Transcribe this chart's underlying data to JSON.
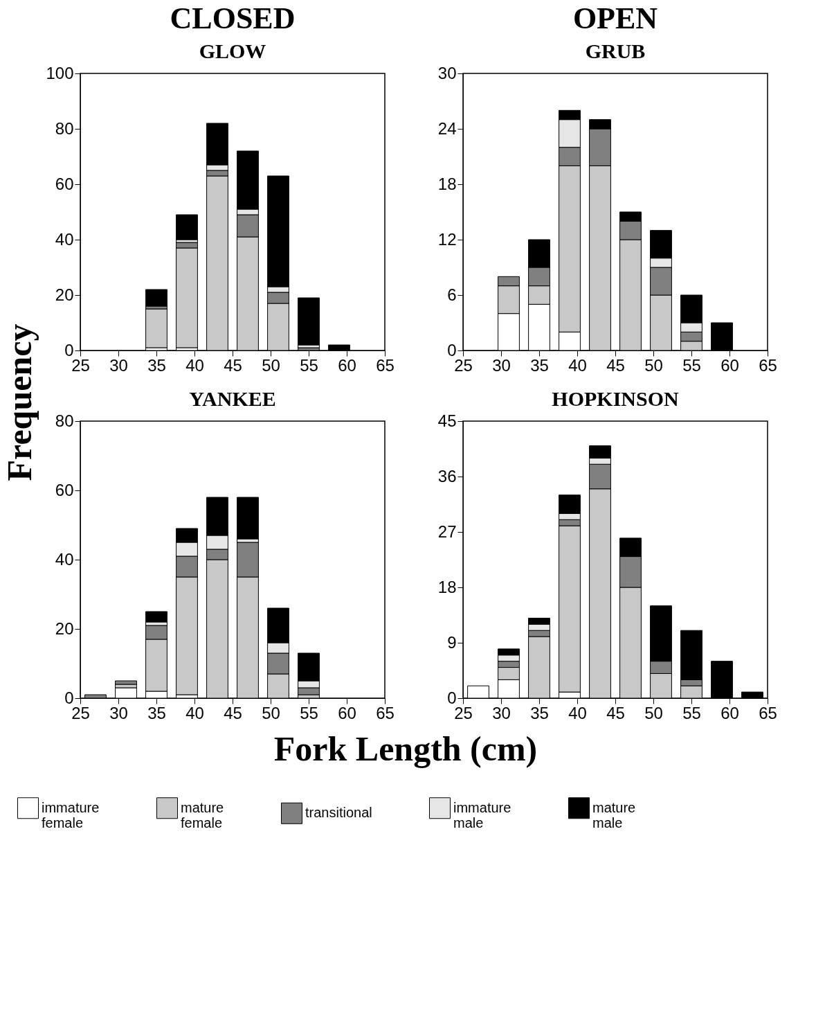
{
  "chart_data": [
    {
      "type": "bar",
      "stacked": true,
      "title": "CLOSED",
      "subtitle": "GLOW",
      "ylabel": "Frequency",
      "legend": "bottom",
      "x": [
        35,
        39,
        43,
        47,
        51,
        55,
        59
      ],
      "xlim": [
        25,
        65
      ],
      "xticks": [
        25,
        30,
        35,
        40,
        45,
        50,
        55,
        60,
        65
      ],
      "ylim": [
        0,
        100
      ],
      "yticks": [
        0,
        20,
        40,
        60,
        80,
        100
      ],
      "series": [
        {
          "name": "immature female",
          "color": "#ffffff",
          "values": [
            1,
            1,
            null,
            null,
            null,
            null,
            null
          ]
        },
        {
          "name": "mature female",
          "color": "#c8c8c8",
          "values": [
            14,
            36,
            63,
            41,
            17,
            null,
            null
          ]
        },
        {
          "name": "transitional",
          "color": "#808080",
          "values": [
            1,
            2,
            2,
            8,
            4,
            1,
            null
          ]
        },
        {
          "name": "immature male",
          "color": "#e6e6e6",
          "values": [
            null,
            1,
            2,
            2,
            2,
            1,
            null
          ]
        },
        {
          "name": "mature male",
          "color": "#000000",
          "values": [
            6,
            9,
            15,
            21,
            40,
            17,
            2
          ]
        }
      ]
    },
    {
      "type": "bar",
      "stacked": true,
      "title": "OPEN",
      "subtitle": "GRUB",
      "legend": "bottom",
      "x": [
        31,
        35,
        39,
        43,
        47,
        51,
        55,
        59
      ],
      "xlim": [
        25,
        65
      ],
      "xticks": [
        25,
        30,
        35,
        40,
        45,
        50,
        55,
        60,
        65
      ],
      "ylim": [
        0,
        30
      ],
      "yticks": [
        0,
        6,
        12,
        18,
        24,
        30
      ],
      "series": [
        {
          "name": "immature female",
          "color": "#ffffff",
          "values": [
            4,
            5,
            2,
            null,
            null,
            null,
            null,
            null
          ]
        },
        {
          "name": "mature female",
          "color": "#c8c8c8",
          "values": [
            3,
            2,
            18,
            20,
            12,
            6,
            1,
            null
          ]
        },
        {
          "name": "transitional",
          "color": "#808080",
          "values": [
            1,
            2,
            2,
            4,
            2,
            3,
            1,
            null
          ]
        },
        {
          "name": "immature male",
          "color": "#e6e6e6",
          "values": [
            null,
            null,
            3,
            null,
            null,
            1,
            1,
            null
          ]
        },
        {
          "name": "mature male",
          "color": "#000000",
          "values": [
            null,
            3,
            1,
            1,
            1,
            3,
            3,
            3
          ]
        }
      ]
    },
    {
      "type": "bar",
      "stacked": true,
      "title": "YANKEE",
      "xlabel": "Fork Length (cm)",
      "legend": "bottom",
      "x": [
        27,
        31,
        35,
        39,
        43,
        47,
        51,
        55
      ],
      "xlim": [
        25,
        65
      ],
      "xticks": [
        25,
        30,
        35,
        40,
        45,
        50,
        55,
        60,
        65
      ],
      "ylim": [
        0,
        80
      ],
      "yticks": [
        0,
        20,
        40,
        60,
        80
      ],
      "series": [
        {
          "name": "immature female",
          "color": "#ffffff",
          "values": [
            null,
            3,
            2,
            1,
            null,
            null,
            null,
            null
          ]
        },
        {
          "name": "mature female",
          "color": "#c8c8c8",
          "values": [
            null,
            1,
            15,
            34,
            40,
            35,
            7,
            1
          ]
        },
        {
          "name": "transitional",
          "color": "#808080",
          "values": [
            1,
            1,
            4,
            6,
            3,
            10,
            6,
            2
          ]
        },
        {
          "name": "immature male",
          "color": "#e6e6e6",
          "values": [
            null,
            null,
            1,
            4,
            4,
            1,
            3,
            2
          ]
        },
        {
          "name": "mature male",
          "color": "#000000",
          "values": [
            null,
            null,
            3,
            4,
            11,
            12,
            10,
            8
          ]
        }
      ]
    },
    {
      "type": "bar",
      "stacked": true,
      "title": "HOPKINSON",
      "legend": "bottom",
      "x": [
        27,
        31,
        35,
        39,
        43,
        47,
        51,
        55,
        59,
        63
      ],
      "xlim": [
        25,
        65
      ],
      "xticks": [
        25,
        30,
        35,
        40,
        45,
        50,
        55,
        60,
        65
      ],
      "ylim": [
        0,
        45
      ],
      "yticks": [
        0,
        9,
        18,
        27,
        36,
        45
      ],
      "series": [
        {
          "name": "immature female",
          "color": "#ffffff",
          "values": [
            2,
            3,
            null,
            1,
            null,
            null,
            null,
            null,
            null,
            null
          ]
        },
        {
          "name": "mature female",
          "color": "#c8c8c8",
          "values": [
            null,
            2,
            10,
            27,
            34,
            18,
            4,
            2,
            null,
            null
          ]
        },
        {
          "name": "transitional",
          "color": "#808080",
          "values": [
            null,
            1,
            1,
            1,
            4,
            5,
            2,
            1,
            null,
            null
          ]
        },
        {
          "name": "immature male",
          "color": "#e6e6e6",
          "values": [
            null,
            1,
            1,
            1,
            1,
            null,
            null,
            null,
            null,
            null
          ]
        },
        {
          "name": "mature male",
          "color": "#000000",
          "values": [
            null,
            1,
            1,
            3,
            2,
            3,
            9,
            8,
            6,
            1
          ]
        }
      ]
    }
  ]
}
